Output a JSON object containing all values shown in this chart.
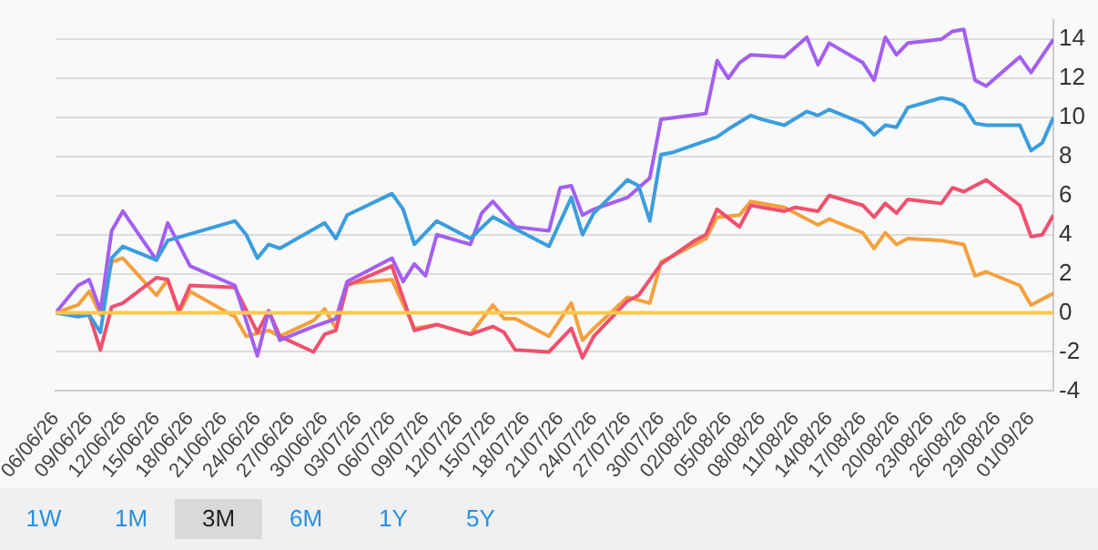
{
  "chart_data": {
    "type": "line",
    "grid": "y",
    "legend": false,
    "marker": "none",
    "line_style": "solid",
    "xlim": [
      "--06-06",
      "--09-03"
    ],
    "ylim": [
      -4,
      15
    ],
    "yticks": [
      -4,
      -2,
      0,
      2,
      4,
      6,
      8,
      10,
      12,
      14
    ],
    "xticks": [
      {
        "value": "--06-06",
        "label": "06/06/26"
      },
      {
        "value": "--06-09",
        "label": "09/06/26"
      },
      {
        "value": "--06-12",
        "label": "12/06/26"
      },
      {
        "value": "--06-15",
        "label": "15/06/26"
      },
      {
        "value": "--06-18",
        "label": "18/06/26"
      },
      {
        "value": "--06-21",
        "label": "21/06/26"
      },
      {
        "value": "--06-24",
        "label": "24/06/26"
      },
      {
        "value": "--06-27",
        "label": "27/06/26"
      },
      {
        "value": "--06-30",
        "label": "30/06/26"
      },
      {
        "value": "--07-03",
        "label": "03/07/26"
      },
      {
        "value": "--07-06",
        "label": "06/07/26"
      },
      {
        "value": "--07-09",
        "label": "09/07/26"
      },
      {
        "value": "--07-12",
        "label": "12/07/26"
      },
      {
        "value": "--07-15",
        "label": "15/07/26"
      },
      {
        "value": "--07-18",
        "label": "18/07/26"
      },
      {
        "value": "--07-21",
        "label": "21/07/26"
      },
      {
        "value": "--07-24",
        "label": "24/07/26"
      },
      {
        "value": "--07-27",
        "label": "27/07/26"
      },
      {
        "value": "--07-30",
        "label": "30/07/26"
      },
      {
        "value": "--08-02",
        "label": "02/08/26"
      },
      {
        "value": "--08-05",
        "label": "05/08/26"
      },
      {
        "value": "--08-08",
        "label": "08/08/26"
      },
      {
        "value": "--08-11",
        "label": "11/08/26"
      },
      {
        "value": "--08-14",
        "label": "14/08/26"
      },
      {
        "value": "--08-17",
        "label": "17/08/26"
      },
      {
        "value": "--08-20",
        "label": "20/08/26"
      },
      {
        "value": "--08-23",
        "label": "23/08/26"
      },
      {
        "value": "--08-26",
        "label": "26/08/26"
      },
      {
        "value": "--08-29",
        "label": "29/08/26"
      },
      {
        "value": "--09-01",
        "label": "01/09/26"
      }
    ],
    "annotations": [
      "1W",
      "1M",
      "3M",
      "6M",
      "1Y",
      "5Y"
    ],
    "series": [
      {
        "color": "#f9c74f",
        "x": [
          "--06-06",
          "--09-03"
        ],
        "values": [
          0,
          0
        ]
      },
      {
        "color": "#3b9ddd",
        "x": [
          "--06-06",
          "--06-08",
          "--06-09",
          "--06-10",
          "--06-11",
          "--06-12",
          "--06-15",
          "--06-16",
          "--06-22",
          "--06-23",
          "--06-24",
          "--06-25",
          "--06-26",
          "--06-30",
          "--07-01",
          "--07-02",
          "--07-06",
          "--07-07",
          "--07-08",
          "--07-10",
          "--07-13",
          "--07-15",
          "--07-17",
          "--07-20",
          "--07-22",
          "--07-23",
          "--07-24",
          "--07-27",
          "--07-28",
          "--07-29",
          "--07-30",
          "--07-31",
          "--08-04",
          "--08-05",
          "--08-07",
          "--08-08",
          "--08-10",
          "--08-12",
          "--08-13",
          "--08-14",
          "--08-17",
          "--08-18",
          "--08-19",
          "--08-20",
          "--08-21",
          "--08-24",
          "--08-25",
          "--08-26",
          "--08-27",
          "--08-28",
          "--08-31",
          "--09-01",
          "--09-02",
          "--09-03"
        ],
        "values": [
          0,
          -0.2,
          -0.1,
          -1.0,
          2.8,
          3.4,
          2.7,
          3.7,
          4.7,
          4.0,
          2.8,
          3.5,
          3.3,
          4.6,
          3.8,
          5.0,
          6.1,
          5.3,
          3.5,
          4.7,
          3.8,
          4.9,
          4.3,
          3.4,
          5.9,
          4.0,
          5.1,
          6.8,
          6.5,
          4.7,
          8.1,
          8.2,
          9.0,
          9.4,
          10.1,
          9.9,
          9.6,
          10.3,
          10.1,
          10.4,
          9.7,
          9.1,
          9.6,
          9.5,
          10.5,
          11.0,
          10.9,
          10.6,
          9.7,
          9.6,
          9.6,
          8.3,
          8.7,
          10.0
        ]
      },
      {
        "color": "#a35ff0",
        "x": [
          "--06-06",
          "--06-08",
          "--06-09",
          "--06-10",
          "--06-11",
          "--06-12",
          "--06-15",
          "--06-16",
          "--06-18",
          "--06-22",
          "--06-24",
          "--06-25",
          "--06-26",
          "--06-29",
          "--07-01",
          "--07-02",
          "--07-06",
          "--07-07",
          "--07-08",
          "--07-09",
          "--07-10",
          "--07-13",
          "--07-14",
          "--07-15",
          "--07-17",
          "--07-20",
          "--07-21",
          "--07-22",
          "--07-23",
          "--07-24",
          "--07-27",
          "--07-29",
          "--07-30",
          "--08-03",
          "--08-04",
          "--08-05",
          "--08-06",
          "--08-07",
          "--08-10",
          "--08-12",
          "--08-13",
          "--08-14",
          "--08-17",
          "--08-18",
          "--08-19",
          "--08-20",
          "--08-21",
          "--08-24",
          "--08-25",
          "--08-26",
          "--08-27",
          "--08-28",
          "--08-31",
          "--09-01",
          "--09-03"
        ],
        "values": [
          0,
          1.4,
          1.7,
          0.1,
          4.2,
          5.2,
          2.7,
          4.6,
          2.4,
          1.4,
          -2.2,
          0.1,
          -1.4,
          -0.7,
          -0.3,
          1.6,
          2.8,
          1.6,
          2.5,
          1.9,
          4.0,
          3.5,
          5.1,
          5.7,
          4.4,
          4.2,
          6.4,
          6.5,
          5.0,
          5.3,
          5.9,
          6.9,
          9.9,
          10.2,
          12.9,
          12.0,
          12.8,
          13.2,
          13.1,
          14.1,
          12.7,
          13.8,
          12.8,
          11.9,
          14.1,
          13.2,
          13.8,
          14.0,
          14.4,
          14.5,
          11.9,
          11.6,
          13.1,
          12.3,
          14.0
        ]
      },
      {
        "color": "#f0506e",
        "x": [
          "--06-06",
          "--06-09",
          "--06-10",
          "--06-11",
          "--06-12",
          "--06-15",
          "--06-16",
          "--06-17",
          "--06-18",
          "--06-22",
          "--06-24",
          "--06-25",
          "--06-26",
          "--06-29",
          "--06-30",
          "--07-01",
          "--07-02",
          "--07-06",
          "--07-08",
          "--07-10",
          "--07-13",
          "--07-15",
          "--07-16",
          "--07-17",
          "--07-20",
          "--07-22",
          "--07-23",
          "--07-24",
          "--07-27",
          "--07-28",
          "--07-30",
          "--08-02",
          "--08-03",
          "--08-04",
          "--08-06",
          "--08-07",
          "--08-10",
          "--08-11",
          "--08-13",
          "--08-14",
          "--08-17",
          "--08-18",
          "--08-19",
          "--08-20",
          "--08-21",
          "--08-24",
          "--08-25",
          "--08-26",
          "--08-28",
          "--08-31",
          "--09-01",
          "--09-02",
          "--09-03"
        ],
        "values": [
          0,
          -0.1,
          -1.9,
          0.3,
          0.5,
          1.8,
          1.7,
          0.1,
          1.4,
          1.3,
          -1.0,
          0.1,
          -1.2,
          -2.0,
          -1.1,
          -0.9,
          1.4,
          2.4,
          -0.9,
          -0.6,
          -1.1,
          -0.7,
          -1.0,
          -1.9,
          -2.0,
          -0.8,
          -2.3,
          -1.2,
          0.6,
          0.9,
          2.5,
          3.7,
          4.0,
          5.3,
          4.4,
          5.5,
          5.2,
          5.4,
          5.2,
          6.0,
          5.5,
          4.9,
          5.6,
          5.1,
          5.8,
          5.6,
          6.4,
          6.2,
          6.8,
          5.5,
          3.9,
          4.0,
          5.0
        ]
      },
      {
        "color": "#f4a03c",
        "x": [
          "--06-06",
          "--06-08",
          "--06-09",
          "--06-10",
          "--06-11",
          "--06-12",
          "--06-15",
          "--06-16",
          "--06-17",
          "--06-18",
          "--06-22",
          "--06-23",
          "--06-25",
          "--06-26",
          "--06-29",
          "--06-30",
          "--07-01",
          "--07-02",
          "--07-06",
          "--07-08",
          "--07-10",
          "--07-13",
          "--07-15",
          "--07-16",
          "--07-17",
          "--07-20",
          "--07-22",
          "--07-23",
          "--07-24",
          "--07-27",
          "--07-29",
          "--07-30",
          "--08-02",
          "--08-03",
          "--08-04",
          "--08-06",
          "--08-07",
          "--08-10",
          "--08-13",
          "--08-14",
          "--08-17",
          "--08-18",
          "--08-19",
          "--08-20",
          "--08-21",
          "--08-24",
          "--08-26",
          "--08-27",
          "--08-28",
          "--08-31",
          "--09-01",
          "--09-03"
        ],
        "values": [
          0,
          0.4,
          1.1,
          -0.1,
          2.6,
          2.8,
          0.9,
          1.7,
          0,
          1.1,
          -0.2,
          -1.2,
          -0.9,
          -1.2,
          -0.4,
          0.2,
          -0.8,
          1.5,
          1.7,
          -0.8,
          -0.6,
          -1.1,
          0.4,
          -0.3,
          -0.3,
          -1.2,
          0.5,
          -1.4,
          -0.8,
          0.8,
          0.5,
          2.6,
          3.5,
          3.8,
          4.9,
          5.0,
          5.7,
          5.4,
          4.5,
          4.8,
          4.1,
          3.3,
          4.1,
          3.5,
          3.8,
          3.7,
          3.5,
          1.9,
          2.1,
          1.4,
          0.4,
          1.0
        ]
      }
    ]
  }
}
